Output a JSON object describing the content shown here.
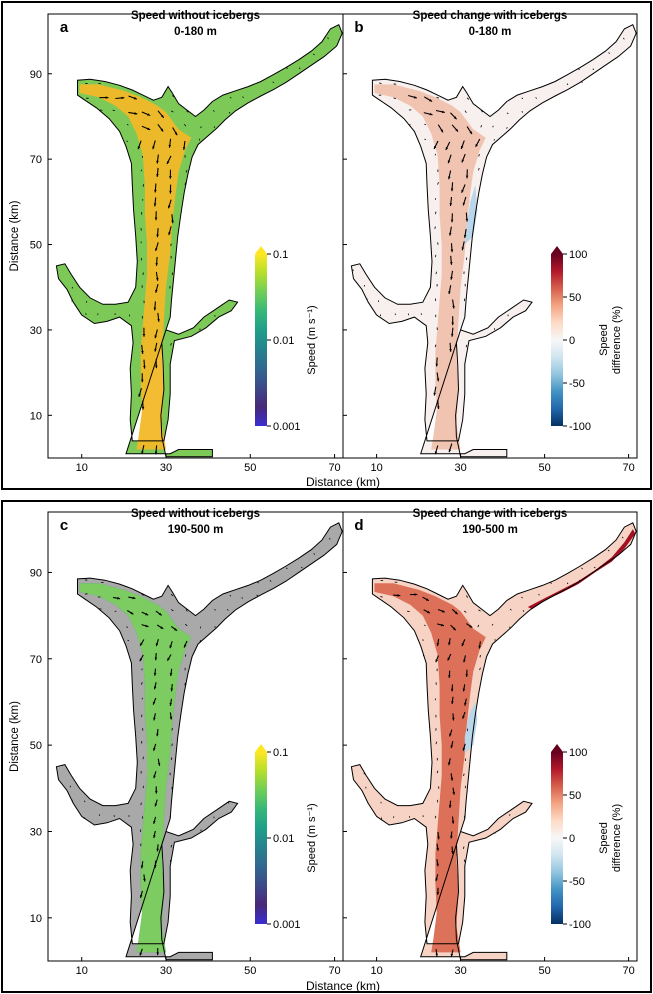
{
  "figure": {
    "xlabel": "Distance (km)",
    "ylabel": "Distance (km)",
    "x_ticks": [
      10,
      30,
      50,
      70
    ],
    "y_ticks": [
      10,
      30,
      50,
      70,
      90
    ]
  },
  "panels": [
    {
      "letter": "a",
      "title": "Speed without icebergs",
      "subtitle": "0-180 m",
      "kind": "speed",
      "depth": "shallow"
    },
    {
      "letter": "b",
      "title": "Speed change with icebergs",
      "subtitle": "0-180 m",
      "kind": "change",
      "depth": "shallow"
    },
    {
      "letter": "c",
      "title": "Speed without icebergs",
      "subtitle": "190-500 m",
      "kind": "speed",
      "depth": "deep"
    },
    {
      "letter": "d",
      "title": "Speed change with icebergs",
      "subtitle": "190-500 m",
      "kind": "change",
      "depth": "deep"
    }
  ],
  "colorbars": {
    "speed": {
      "label": "Speed (m s⁻¹)",
      "ticks": [
        "0.1",
        "0.01",
        "0.001"
      ],
      "scale": "log",
      "range": [
        0.001,
        0.1
      ],
      "colors": [
        "#fde725",
        "#b5de2b",
        "#6ece58",
        "#35b779",
        "#1f9e89",
        "#26828e",
        "#31688e",
        "#3e4989",
        "#482878",
        "#3b2ed0"
      ]
    },
    "change": {
      "label_line1": "Speed",
      "label_line2": "difference (%)",
      "ticks": [
        "100",
        "50",
        "0",
        "-50",
        "-100"
      ],
      "range": [
        -100,
        100
      ],
      "colors": [
        "#67001f",
        "#b2182b",
        "#d6604d",
        "#f4a582",
        "#fddbc7",
        "#f7f7f7",
        "#d1e5f0",
        "#92c5de",
        "#4393c3",
        "#2166ac",
        "#053061"
      ]
    }
  },
  "chart_data": [
    {
      "type": "heatmap",
      "title": "Speed without icebergs",
      "subtitle": "0-180 m",
      "xlabel": "Distance (km)",
      "ylabel": "Distance (km)",
      "xlim": [
        2,
        72
      ],
      "ylim": [
        0,
        104
      ],
      "colorbar": "Speed (m s-1)",
      "color_range": [
        0.001,
        0.1
      ],
      "color_scale": "log"
    },
    {
      "type": "heatmap",
      "title": "Speed change with icebergs",
      "subtitle": "0-180 m",
      "xlabel": "Distance (km)",
      "xlim": [
        2,
        72
      ],
      "ylim": [
        0,
        104
      ],
      "colorbar": "Speed difference (%)",
      "color_range": [
        -100,
        100
      ]
    },
    {
      "type": "heatmap",
      "title": "Speed without icebergs",
      "subtitle": "190-500 m",
      "xlabel": "Distance (km)",
      "ylabel": "Distance (km)",
      "xlim": [
        2,
        72
      ],
      "ylim": [
        0,
        104
      ],
      "colorbar": "Speed (m s-1)",
      "color_range": [
        0.001,
        0.1
      ],
      "color_scale": "log"
    },
    {
      "type": "heatmap",
      "title": "Speed change with icebergs",
      "subtitle": "190-500 m",
      "xlabel": "Distance (km)",
      "xlim": [
        2,
        72
      ],
      "ylim": [
        0,
        104
      ],
      "colorbar": "Speed difference (%)",
      "color_range": [
        -100,
        100
      ]
    }
  ],
  "colors": {
    "land": "#a9a9a9",
    "outline": "#000000",
    "speed_shallow_main": "#f2b828",
    "speed_shallow_side": "#7cc957",
    "speed_shallow_edge": "#2fb3a0",
    "speed_deep_main": "#7fd15a",
    "speed_deep_side": "#3d6fe0",
    "change_shallow_base": "#f7f0ee",
    "change_shallow_warm": "#f0c1ad",
    "change_deep_base": "#f6d3c4",
    "change_deep_warm": "#db6a52",
    "change_deep_hot": "#a50f22",
    "change_cool": "#b9d6ea"
  }
}
